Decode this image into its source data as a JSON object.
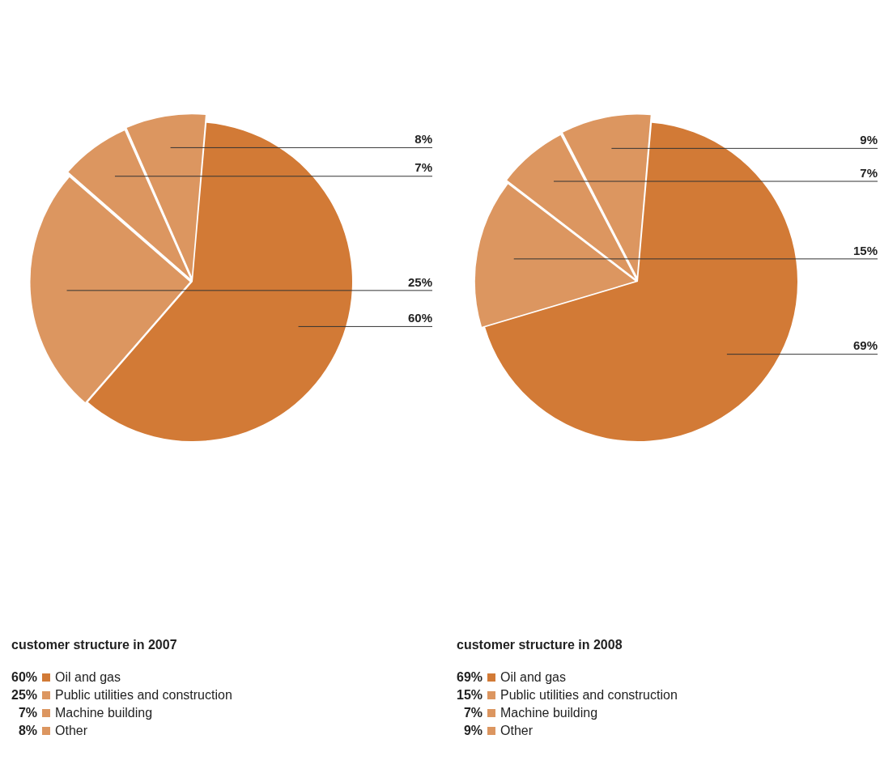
{
  "chart_data": [
    {
      "type": "pie",
      "title": "customer structure in 2007",
      "categories": [
        "Oil and gas",
        "Public utilities and construction",
        "Machine building",
        "Other"
      ],
      "values": [
        60,
        25,
        7,
        8
      ],
      "value_labels": [
        "60%",
        "25%",
        "7%",
        "8%"
      ],
      "colors": [
        "#d27a36",
        "#dc9660",
        "#dc9660",
        "#dc9660"
      ],
      "legend": "bottom"
    },
    {
      "type": "pie",
      "title": "customer structure in 2008",
      "categories": [
        "Oil and gas",
        "Public utilities and construction",
        "Machine building",
        "Other"
      ],
      "values": [
        69,
        15,
        7,
        9
      ],
      "value_labels": [
        "69%",
        "15%",
        "7%",
        "9%"
      ],
      "colors": [
        "#d27a36",
        "#dc9660",
        "#dc9660",
        "#dc9660"
      ],
      "legend": "bottom"
    }
  ]
}
